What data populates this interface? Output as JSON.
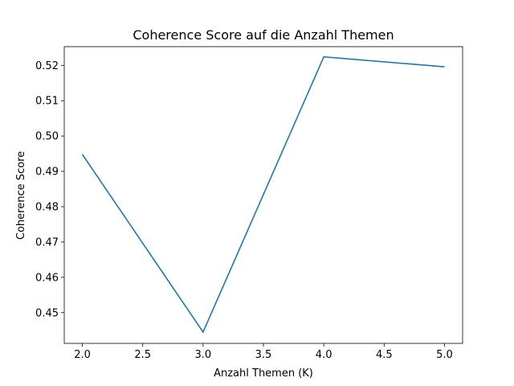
{
  "chart_data": {
    "type": "line",
    "title": "Coherence Score auf die Anzahl Themen",
    "xlabel": "Anzahl Themen (K)",
    "ylabel": "Coherence Score",
    "xlim": [
      1.85,
      5.15
    ],
    "ylim": [
      0.4413,
      0.5253
    ],
    "xticks": [
      2.0,
      2.5,
      3.0,
      3.5,
      4.0,
      4.5,
      5.0
    ],
    "xtick_labels": [
      "2.0",
      "2.5",
      "3.0",
      "3.5",
      "4.0",
      "4.5",
      "5.0"
    ],
    "yticks": [
      0.45,
      0.46,
      0.47,
      0.48,
      0.49,
      0.5,
      0.51,
      0.52
    ],
    "ytick_labels": [
      "0.45",
      "0.46",
      "0.47",
      "0.48",
      "0.49",
      "0.50",
      "0.51",
      "0.52"
    ],
    "grid": false,
    "series": [
      {
        "x": [
          2,
          3,
          4,
          5
        ],
        "values": [
          0.4948,
          0.4445,
          0.5224,
          0.5196
        ],
        "color": "#1f77b4"
      }
    ]
  }
}
